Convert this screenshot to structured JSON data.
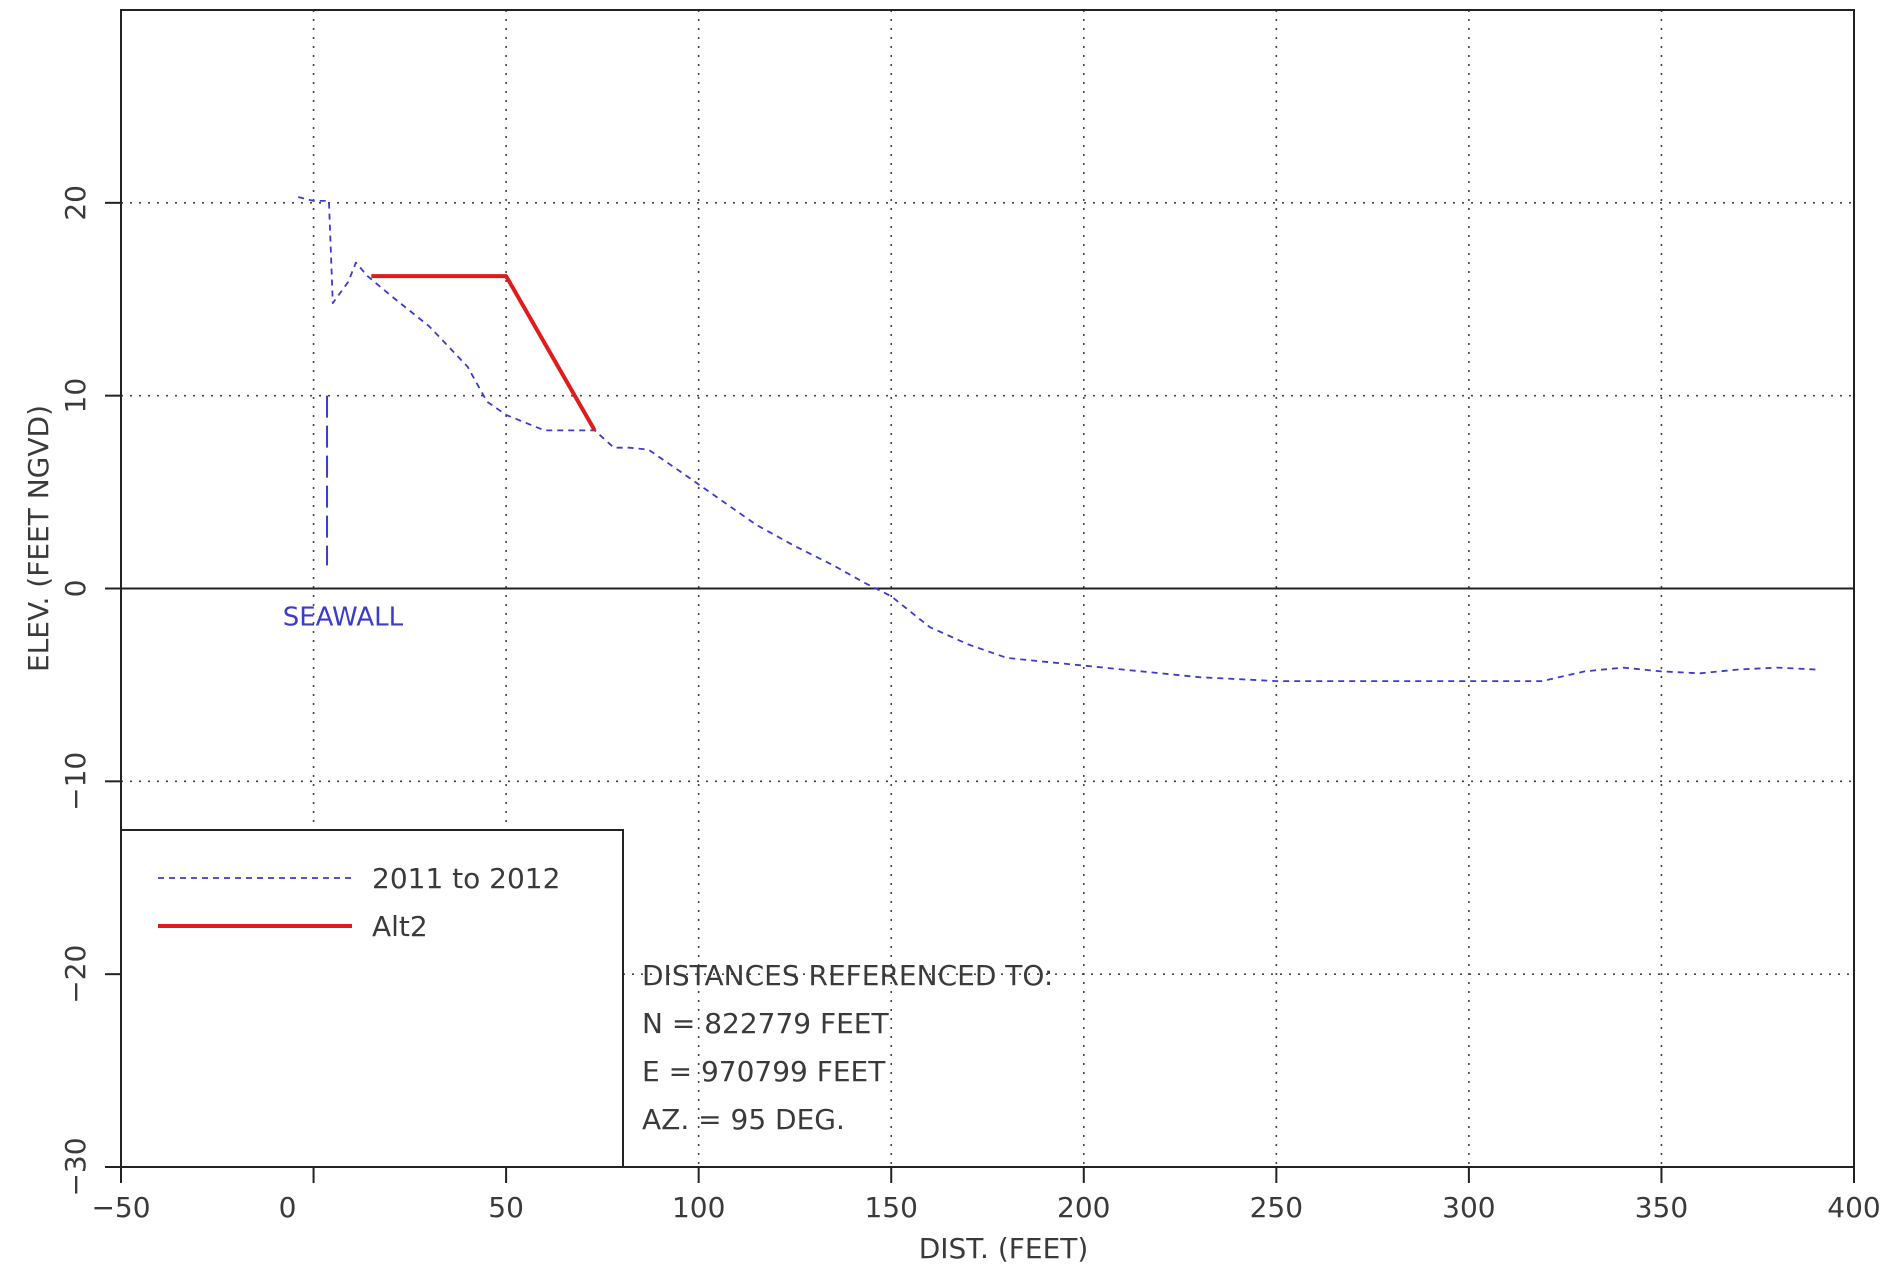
{
  "chart_data": {
    "type": "line",
    "title": "",
    "xlabel": "DIST. (FEET)",
    "ylabel": "ELEV. (FEET NGVD)",
    "xlim": [
      -50,
      400
    ],
    "ylim": [
      -30,
      30
    ],
    "xticks": [
      -50,
      0,
      50,
      100,
      150,
      200,
      250,
      300,
      350,
      400
    ],
    "yticks": [
      -30,
      -20,
      -10,
      0,
      10,
      20
    ],
    "grid": true,
    "legend_position": "bottom-left",
    "colors": {
      "survey": "#3b3bcc",
      "alt2": "#e01b1b",
      "axis": "#222222",
      "grid": "#444444"
    },
    "series": [
      {
        "name": "2011 to 2012",
        "style": "dashed",
        "x": [
          -4,
          0,
          4,
          4,
          5,
          9,
          11,
          14,
          20,
          30,
          40,
          45,
          50,
          55,
          60,
          66,
          73,
          78,
          82,
          87,
          95,
          105,
          115,
          125,
          135,
          143,
          150,
          160,
          170,
          180,
          190,
          200,
          210,
          220,
          230,
          240,
          250,
          260,
          270,
          280,
          290,
          300,
          310,
          319,
          330,
          340,
          350,
          360,
          370,
          380,
          390
        ],
        "y": [
          20.3,
          20.1,
          20.1,
          20.0,
          14.8,
          15.9,
          16.9,
          16.2,
          15.2,
          13.6,
          11.5,
          9.7,
          9.0,
          8.6,
          8.2,
          8.2,
          8.2,
          7.3,
          7.3,
          7.2,
          6.1,
          4.7,
          3.3,
          2.2,
          1.2,
          0.3,
          -0.4,
          -2.0,
          -2.9,
          -3.6,
          -3.8,
          -4.0,
          -4.2,
          -4.4,
          -4.6,
          -4.7,
          -4.8,
          -4.8,
          -4.8,
          -4.8,
          -4.8,
          -4.8,
          -4.8,
          -4.8,
          -4.3,
          -4.1,
          -4.3,
          -4.4,
          -4.2,
          -4.1,
          -4.2
        ]
      },
      {
        "name": "Alt2",
        "style": "solid",
        "x": [
          15,
          50,
          73
        ],
        "y": [
          16.2,
          16.2,
          8.2
        ]
      }
    ],
    "seawall": {
      "x": 3.5,
      "y_top": 10,
      "y_bottom": 1.2
    },
    "annotations": [
      {
        "text": "SEAWALL",
        "x": -8,
        "y": -1.2
      }
    ],
    "reference_note": {
      "lines": [
        "DISTANCES REFERENCED TO:",
        "N = 822779 FEET",
        "E = 970799 FEET",
        "AZ. = 95 DEG."
      ]
    }
  }
}
